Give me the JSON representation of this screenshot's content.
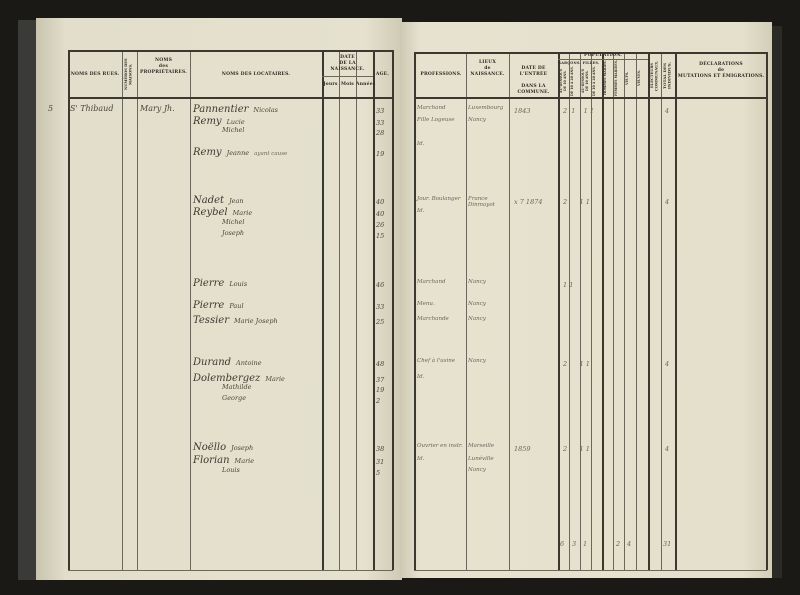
{
  "left_page": {
    "headers": {
      "streets": "NOMS DES RUES.",
      "house_numbers": "NUMÉROS DES MAISONS.",
      "owners_line1": "NOMS",
      "owners_line2": "des",
      "owners_line3": "PROPRIÉTAIRES.",
      "tenants": "NOMS DES LOCATAIRES.",
      "birth_date_line1": "DATE",
      "birth_date_line2": "DE LA NAISSANCE.",
      "day": "Jours",
      "month": "Mois",
      "year": "Années",
      "age": "AGE."
    },
    "street": "S' Thibaud",
    "house_number": "5",
    "owner": "Mary Jh.",
    "entries": [
      {
        "name": "Pannentier",
        "given": "Nicolas",
        "age": "33"
      },
      {
        "name": "Remy",
        "given": "Lucie",
        "age": "33"
      },
      {
        "name": "",
        "given": "Michel",
        "age": "28"
      },
      {
        "name": "Remy",
        "given": "Jeanne",
        "note": "ayant cause",
        "age": "19"
      },
      {
        "name": "Nadet",
        "given": "Jean",
        "note": "",
        "age": "40"
      },
      {
        "name": "Reybel",
        "given": "Marie",
        "age": "40"
      },
      {
        "name": "",
        "given": "Michel",
        "age": "26"
      },
      {
        "name": "",
        "given": "Joseph",
        "age": "15"
      },
      {
        "name": "Pierre",
        "given": "Louis",
        "age": "46"
      },
      {
        "name": "Pierre",
        "given": "Paul",
        "note": "",
        "age": "33"
      },
      {
        "name": "Tessier",
        "given": "Marie Joseph",
        "note": "",
        "age": "25"
      },
      {
        "name": "Durand",
        "given": "Antoine",
        "age": "48"
      },
      {
        "name": "Dolembergez",
        "given": "Marie",
        "note": "",
        "age": "37"
      },
      {
        "name": "",
        "given": "Mathilde",
        "age": "19"
      },
      {
        "name": "",
        "given": "George",
        "age": "2"
      },
      {
        "name": "Noëllo",
        "given": "Joseph",
        "age": "38"
      },
      {
        "name": "Florian",
        "given": "Marie",
        "age": "31"
      },
      {
        "name": "",
        "given": "Louis",
        "age": "5"
      }
    ]
  },
  "right_page": {
    "headers": {
      "profession": "PROFESSIONS.",
      "birthplace_line1": "LIEUX",
      "birthplace_line2": "de",
      "birthplace_line3": "NAISSANCE.",
      "entry_date_line1": "DATE DE L'ENTRÉE",
      "entry_date_line2": "DANS LA COMMUNE.",
      "population": "POPULATION.",
      "boys": "GARÇONS.",
      "girls": "FILLES.",
      "sub_cols": [
        "AU-DESSOUS DE 10 ANS.",
        "DE 10 À 20 ANS.",
        "AU-DESSOUS DE 10 ANS.",
        "DE 10 À 20 ANS.",
        "HOMMES MARIÉS.",
        "FEMMES MARIÉES.",
        "VEUFS.",
        "VEUVES."
      ],
      "voters": "ÉLECTEURS COMMUNAUX.",
      "total_line1": "TOTAL",
      "total_line2": "DES INDIVIDUS.",
      "declarations_line1": "DÉCLARATIONS",
      "declarations_line2": "de",
      "declarations_line3": "MUTATIONS ET ÉMIGRATIONS."
    },
    "entries": [
      {
        "profession": "Marchand",
        "birthplace": "Luxembourg",
        "entry_date": "1843",
        "counts": "2  1    1 1",
        "total": "4"
      },
      {
        "profession": "Fille Logeuse",
        "birthplace": "Nancy"
      },
      {
        "profession": "Id."
      },
      {
        "profession": "Jour. Boulanger",
        "birthplace": "France Dinmayot",
        "entry_date": "x 7 1874",
        "counts": "2      1 1",
        "total": "4"
      },
      {
        "profession": "Id."
      },
      {
        "profession": "Marchand",
        "birthplace": "Nancy",
        "counts": "1 1",
        "total": ""
      },
      {
        "profession": "Menu.",
        "birthplace": "Nancy"
      },
      {
        "profession": "Marchande",
        "birthplace": "Nancy"
      },
      {
        "profession": "Chef à l'usine",
        "birthplace": "Nancy",
        "counts": "2      1 1",
        "total": "4"
      },
      {
        "profession": "Id."
      },
      {
        "profession": "Ouvrier en instr.",
        "birthplace": "Marseille",
        "entry_date": "1859",
        "counts": "2      1 1",
        "total": "4"
      },
      {
        "profession": "Id.",
        "birthplace": "Lunéville"
      },
      {
        "profession": "",
        "birthplace": "Nancy"
      }
    ],
    "totals": [
      "6",
      "3",
      "1",
      "2",
      "4",
      "31"
    ]
  }
}
